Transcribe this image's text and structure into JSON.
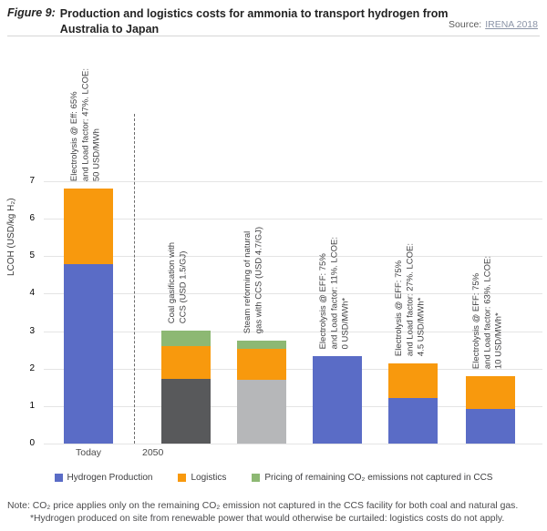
{
  "figure": {
    "label": "Figure 9:",
    "title": "Production and logistics costs for ammonia to transport hydrogen from Australia to Japan",
    "source_prefix": "Source:",
    "source_link": "IRENA 2018"
  },
  "chart_data": {
    "type": "bar",
    "stacked": true,
    "ylabel": "LCOH (USD/kg H₂)",
    "ylim": [
      0,
      7
    ],
    "yticks": [
      0,
      1,
      2,
      3,
      4,
      5,
      6,
      7
    ],
    "grid": true,
    "legend_position": "bottom",
    "x_axis_labels": [
      "Today",
      "2050"
    ],
    "colors": {
      "hydrogen_production": "#5a6cc6",
      "logistics": "#f8990d",
      "co2_pricing": "#8db873",
      "coal_gasification": "#58595b",
      "steam_reforming": "#b6b7b9"
    },
    "legend": [
      {
        "label": "Hydrogen Production",
        "color": "#5a6cc6"
      },
      {
        "label": "Logistics",
        "color": "#f8990d"
      },
      {
        "label": "Pricing of remaining CO₂ emissions not captured in CCS",
        "color": "#8db873"
      }
    ],
    "bars": [
      {
        "group": "Today",
        "annotation": "Electrolysis @ Eff: 65%\nand Load factor: 47%. LCOE:\n50 USD/MWh",
        "segments": [
          {
            "series": "Hydrogen Production",
            "color": "hydrogen_production",
            "value": 4.8
          },
          {
            "series": "Logistics",
            "color": "logistics",
            "value": 2.0
          }
        ]
      },
      {
        "group": "2050",
        "annotation": "Coal gasification with\nCCS (USD 1.5/GJ)",
        "segments": [
          {
            "series": "Hydrogen Production (coal gasification with CCS)",
            "color": "coal_gasification",
            "value": 1.73
          },
          {
            "series": "Logistics",
            "color": "logistics",
            "value": 0.88
          },
          {
            "series": "Pricing of remaining CO₂ emissions not captured in CCS",
            "color": "co2_pricing",
            "value": 0.4
          }
        ]
      },
      {
        "group": "2050",
        "annotation": "Steam reforming of natural\ngas with CCS (USD 4.7/GJ)",
        "segments": [
          {
            "series": "Hydrogen Production (steam reforming of natural gas with CCS)",
            "color": "steam_reforming",
            "value": 1.7
          },
          {
            "series": "Logistics",
            "color": "logistics",
            "value": 0.82
          },
          {
            "series": "Pricing of remaining CO₂ emissions not captured in CCS",
            "color": "co2_pricing",
            "value": 0.22
          }
        ]
      },
      {
        "group": "2050",
        "annotation": "Electrolysis @ EFF: 75%\nand Load factor: 11%. LCOE:\n0 USD/MWh*",
        "segments": [
          {
            "series": "Hydrogen Production",
            "color": "hydrogen_production",
            "value": 2.33
          }
        ]
      },
      {
        "group": "2050",
        "annotation": "Electrolysis @ EFF: 75%\nand Load factor: 27%. LCOE:\n4.5 USD/MWh*",
        "segments": [
          {
            "series": "Hydrogen Production",
            "color": "hydrogen_production",
            "value": 1.21
          },
          {
            "series": "Logistics",
            "color": "logistics",
            "value": 0.93
          }
        ]
      },
      {
        "group": "2050",
        "annotation": "Electrolysis @ EFF: 75%\nand Load factor: 63%. LCOE:\n10 USD/MWh*",
        "segments": [
          {
            "series": "Hydrogen Production",
            "color": "hydrogen_production",
            "value": 0.92
          },
          {
            "series": "Logistics",
            "color": "logistics",
            "value": 0.87
          }
        ]
      }
    ]
  },
  "notes": {
    "line1": "Note: CO₂ price applies only on the remaining CO₂ emission not captured in the CCS facility for both coal and natural gas.",
    "line2": "*Hydrogen produced on site from renewable power that would otherwise be curtailed: logistics costs do not apply."
  }
}
